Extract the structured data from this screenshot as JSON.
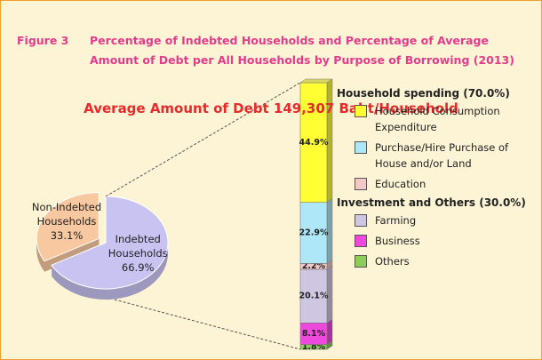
{
  "chart_data": [
    {
      "type": "pie",
      "figure_label": "Figure 3",
      "title": "Percentage of Indebted Households and Percentage of Average Amount of Debt per All Households by Purpose of Borrowing (2013)",
      "subtitle": "Average Amount of Debt 149,307 Baht/Household",
      "categories": [
        "Indebted Households",
        "Non-Indebted Households"
      ],
      "values": [
        66.9,
        33.1
      ],
      "value_labels": [
        "66.9%",
        "33.1%"
      ],
      "colors": [
        "#c9c3f2",
        "#f8c9a0"
      ]
    },
    {
      "type": "stacked_bar",
      "ylim": [
        0,
        100
      ],
      "groups": [
        {
          "title": "Household spending (70.0%)",
          "series": [
            {
              "name": "Household Consumption Expenditure",
              "color": "#ffff33",
              "values": [
                44.9
              ],
              "value_labels": [
                "44.9%"
              ]
            },
            {
              "name": "Purchase/Hire Purchase of House and/or Land",
              "color": "#aee8f8",
              "values": [
                22.9
              ],
              "value_labels": [
                "22.9%"
              ]
            },
            {
              "name": "Education",
              "color": "#f2c8c8",
              "values": [
                2.2
              ],
              "value_labels": [
                "2.2%"
              ]
            }
          ]
        },
        {
          "title": "Investment and Others (30.0%)",
          "series": [
            {
              "name": "Farming",
              "color": "#cfc7e2",
              "values": [
                20.1
              ],
              "value_labels": [
                "20.1%"
              ]
            },
            {
              "name": "Business",
              "color": "#ee48dc",
              "values": [
                8.1
              ],
              "value_labels": [
                "8.1%"
              ]
            },
            {
              "name": "Others",
              "color": "#8ccc5a",
              "values": [
                1.8
              ],
              "value_labels": [
                "1.8%"
              ]
            }
          ]
        }
      ]
    }
  ]
}
